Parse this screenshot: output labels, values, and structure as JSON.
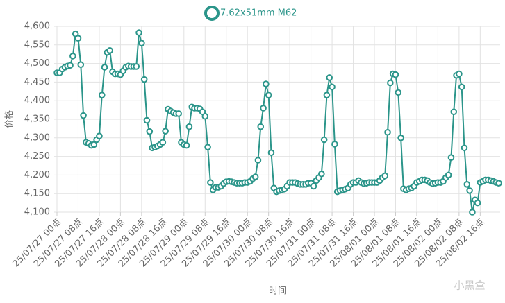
{
  "chart_data": {
    "type": "line",
    "legend": "top",
    "x_label": "时间",
    "y_label": "价格",
    "watermark": "小黑盒",
    "grid": true,
    "ylim": [
      4100,
      4600
    ],
    "yticks": [
      {
        "value": 4100,
        "label": "4,100"
      },
      {
        "value": 4150,
        "label": "4,150"
      },
      {
        "value": 4200,
        "label": "4,200"
      },
      {
        "value": 4250,
        "label": "4,250"
      },
      {
        "value": 4300,
        "label": "4,300"
      },
      {
        "value": 4350,
        "label": "4,350"
      },
      {
        "value": 4400,
        "label": "4,400"
      },
      {
        "value": 4450,
        "label": "4,450"
      },
      {
        "value": 4500,
        "label": "4,500"
      },
      {
        "value": 4550,
        "label": "4,550"
      },
      {
        "value": 4600,
        "label": "4,600"
      }
    ],
    "categories": [
      "25/07/27 00点",
      null,
      null,
      null,
      null,
      null,
      null,
      null,
      "25/07/27 08点",
      null,
      null,
      null,
      null,
      null,
      null,
      null,
      "25/07/27 16点",
      null,
      null,
      null,
      null,
      null,
      null,
      null,
      "25/07/28 00点",
      null,
      null,
      null,
      null,
      null,
      null,
      null,
      "25/07/28 08点",
      null,
      null,
      null,
      null,
      null,
      null,
      null,
      "25/07/28 16点",
      null,
      null,
      null,
      null,
      null,
      null,
      null,
      "25/07/29 00点",
      null,
      null,
      null,
      null,
      null,
      null,
      null,
      "25/07/29 08点",
      null,
      null,
      null,
      null,
      null,
      null,
      null,
      "25/07/29 16点",
      null,
      null,
      null,
      null,
      null,
      null,
      null,
      "25/07/30 00点",
      null,
      null,
      null,
      null,
      null,
      null,
      null,
      "25/07/30 08点",
      null,
      null,
      null,
      null,
      null,
      null,
      null,
      "25/07/30 16点",
      null,
      null,
      null,
      null,
      null,
      null,
      null,
      "25/07/31 00点",
      null,
      null,
      null,
      null,
      null,
      null,
      null,
      "25/07/31 08点",
      null,
      null,
      null,
      null,
      null,
      null,
      null,
      "25/07/31 16点",
      null,
      null,
      null,
      null,
      null,
      null,
      null,
      "25/08/01 00点",
      null,
      null,
      null,
      null,
      null,
      null,
      null,
      "25/08/01 08点",
      null,
      null,
      null,
      null,
      null,
      null,
      null,
      "25/08/01 16点",
      null,
      null,
      null,
      null,
      null,
      null,
      null,
      "25/08/02 00点",
      null,
      null,
      null,
      null,
      null,
      null,
      null,
      "25/08/02 08点",
      null,
      null,
      null,
      null,
      null,
      null,
      null,
      "25/08/02 16点",
      null,
      null,
      null,
      null,
      null,
      null,
      null
    ],
    "series": [
      {
        "name": "7.62x51mm M62",
        "color": "#2b958a",
        "values": [
          4475,
          4475,
          4485,
          4490,
          4493,
          4495,
          4520,
          4580,
          4568,
          4497,
          4360,
          4288,
          4285,
          4280,
          4282,
          4295,
          4305,
          4415,
          4490,
          4530,
          4535,
          4478,
          4472,
          4472,
          4470,
          4480,
          4490,
          4493,
          4492,
          4492,
          4492,
          4583,
          4555,
          4457,
          4347,
          4317,
          4273,
          4275,
          4278,
          4282,
          4288,
          4318,
          4377,
          4372,
          4368,
          4365,
          4365,
          4288,
          4282,
          4280,
          4330,
          4383,
          4380,
          4380,
          4378,
          4370,
          4358,
          4275,
          4180,
          4160,
          4167,
          4167,
          4170,
          4177,
          4182,
          4183,
          4182,
          4180,
          4178,
          4178,
          4178,
          4180,
          4180,
          4183,
          4190,
          4195,
          4240,
          4330,
          4380,
          4445,
          4415,
          4260,
          4165,
          4155,
          4158,
          4160,
          4162,
          4170,
          4180,
          4180,
          4180,
          4177,
          4175,
          4175,
          4175,
          4178,
          4178,
          4170,
          4185,
          4193,
          4203,
          4295,
          4415,
          4462,
          4437,
          4283,
          4155,
          4158,
          4160,
          4162,
          4165,
          4175,
          4180,
          4180,
          4185,
          4180,
          4177,
          4178,
          4180,
          4180,
          4180,
          4180,
          4185,
          4193,
          4198,
          4315,
          4448,
          4472,
          4470,
          4422,
          4300,
          4163,
          4160,
          4163,
          4165,
          4170,
          4180,
          4183,
          4187,
          4187,
          4185,
          4180,
          4177,
          4178,
          4180,
          4180,
          4183,
          4193,
          4200,
          4247,
          4370,
          4468,
          4472,
          4437,
          4273,
          4175,
          4158,
          4100,
          4133,
          4125,
          4180,
          4183,
          4187,
          4187,
          4185,
          4183,
          4180,
          4178
        ]
      }
    ]
  }
}
